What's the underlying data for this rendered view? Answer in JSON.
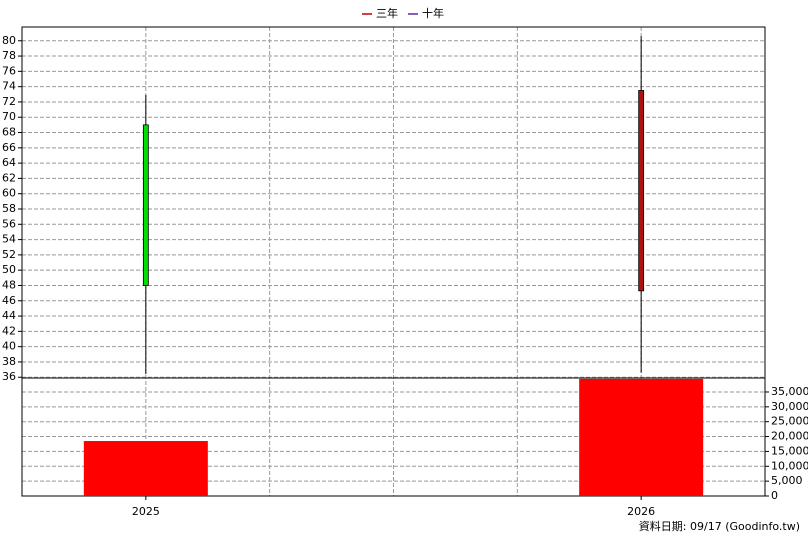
{
  "chart_data": {
    "type": "candlestick",
    "legend": [
      {
        "name": "三年",
        "color": "#c00000"
      },
      {
        "name": "十年",
        "color": "#5a2ca0"
      }
    ],
    "categories": [
      "2025",
      "2026"
    ],
    "open": [
      69,
      47.3
    ],
    "high": [
      72.9,
      80.6
    ],
    "low": [
      36.4,
      36.6
    ],
    "close": [
      48,
      73.5
    ],
    "up_color": "#b01010",
    "down_color": "#00e000",
    "ylim": [
      35.9,
      81.8
    ],
    "yticks": [
      36,
      38,
      40,
      42,
      44,
      46,
      48,
      50,
      52,
      54,
      56,
      58,
      60,
      62,
      64,
      66,
      68,
      70,
      72,
      74,
      76,
      78,
      80
    ],
    "grid": true,
    "volume": {
      "values": [
        18500,
        39400
      ],
      "color": "#ff0000",
      "ylim": [
        0,
        39700
      ],
      "yticks": [
        0,
        {
          "value": 5000,
          "label": "5,000"
        },
        {
          "value": 10000,
          "label": "10,000"
        },
        {
          "value": 15000,
          "label": "15,000"
        },
        {
          "value": 20000,
          "label": "20,000"
        },
        {
          "value": 25000,
          "label": "25,000"
        },
        {
          "value": 30000,
          "label": "30,000"
        },
        {
          "value": 35000,
          "label": "35,000"
        }
      ]
    },
    "footer": "資料日期: 09/17  (Goodinfo.tw)"
  }
}
